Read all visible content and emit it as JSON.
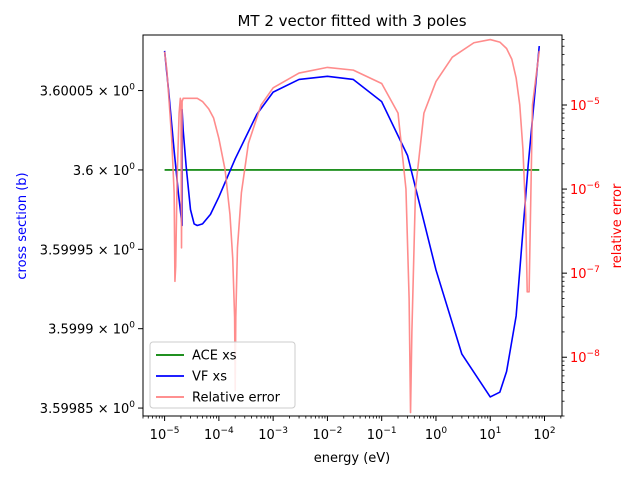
{
  "chart_data": {
    "type": "line",
    "title": "MT 2 vector fitted with 3 poles",
    "xlabel": "energy (eV)",
    "ylabel_left": "cross section (b)",
    "ylabel_right": "relative error",
    "x_scale": "log",
    "y_left_scale": "log",
    "y_right_scale": "log",
    "xlim": [
      4e-06,
      210.0
    ],
    "ylim_left": [
      3.599845,
      3.600085
    ],
    "ylim_right": [
      2e-09,
      6.8e-05
    ],
    "x_ticks": [
      {
        "value": 1e-05,
        "base": "10",
        "exp": "−5"
      },
      {
        "value": 0.0001,
        "base": "10",
        "exp": "−4"
      },
      {
        "value": 0.001,
        "base": "10",
        "exp": "−3"
      },
      {
        "value": 0.01,
        "base": "10",
        "exp": "−2"
      },
      {
        "value": 0.1,
        "base": "10",
        "exp": "−1"
      },
      {
        "value": 1,
        "base": "10",
        "exp": "0"
      },
      {
        "value": 10,
        "base": "10",
        "exp": "1"
      },
      {
        "value": 100,
        "base": "10",
        "exp": "2"
      }
    ],
    "y_left_ticks": [
      {
        "value": 3.60005,
        "mant": "3.60005 × 10",
        "exp": "0"
      },
      {
        "value": 3.6,
        "mant": "3.6 × 10",
        "exp": "0"
      },
      {
        "value": 3.59995,
        "mant": "3.59995 × 10",
        "exp": "0"
      },
      {
        "value": 3.5999,
        "mant": "3.5999 × 10",
        "exp": "0"
      },
      {
        "value": 3.59985,
        "mant": "3.59985 × 10",
        "exp": "0"
      }
    ],
    "y_right_ticks": [
      {
        "value": 1e-05,
        "base": "10",
        "exp": "−5"
      },
      {
        "value": 1e-06,
        "base": "10",
        "exp": "−6"
      },
      {
        "value": 1e-07,
        "base": "10",
        "exp": "−7"
      },
      {
        "value": 1e-08,
        "base": "10",
        "exp": "−8"
      }
    ],
    "legend_position": "lower-left",
    "series": [
      {
        "name": "ACE xs",
        "axis": "left",
        "color": "#008000",
        "x": [
          1e-05,
          80
        ],
        "y": [
          3.6,
          3.6
        ]
      },
      {
        "name": "VF xs",
        "axis": "left",
        "color": "#0000ff",
        "x": [
          1e-05,
          1.2e-05,
          1.5e-05,
          1.8e-05,
          2.1e-05,
          2.1e-05,
          2.2e-05,
          2.5e-05,
          3e-05,
          3.5e-05,
          4e-05,
          5e-05,
          7e-05,
          0.0001,
          0.0002,
          0.0005,
          0.001,
          0.003,
          0.01,
          0.03,
          0.1,
          0.3,
          1,
          3,
          10,
          15,
          20,
          30,
          50,
          80
        ],
        "y": [
          3.600075,
          3.600048,
          3.600012,
          3.599985,
          3.599965,
          3.600038,
          3.600025,
          3.600002,
          3.599975,
          3.599966,
          3.599965,
          3.599966,
          3.599972,
          3.599983,
          3.600007,
          3.600035,
          3.600049,
          3.600057,
          3.600059,
          3.600057,
          3.600043,
          3.600009,
          3.599937,
          3.599884,
          3.599857,
          3.59986,
          3.599873,
          3.599908,
          3.600003,
          3.600078
        ]
      },
      {
        "name": "Relative error",
        "axis": "right",
        "color": "#ff8080",
        "x": [
          1e-05,
          1.1e-05,
          1.2e-05,
          1.35e-05,
          1.5e-05,
          1.55e-05,
          1.6e-05,
          1.7e-05,
          1.85e-05,
          1.95e-05,
          2e-05,
          2.05e-05,
          2.1e-05,
          2.2e-05,
          2.4e-05,
          2.8e-05,
          3.3e-05,
          4e-05,
          5e-05,
          6.5e-05,
          8e-05,
          0.0001,
          0.00013,
          0.00016,
          0.00018,
          0.000195,
          0.0002,
          0.000205,
          0.00022,
          0.00026,
          0.00035,
          0.0006,
          0.001,
          0.003,
          0.01,
          0.03,
          0.1,
          0.2,
          0.28,
          0.32,
          0.34,
          0.36,
          0.42,
          0.6,
          1,
          2,
          5,
          10,
          15,
          20,
          25,
          30,
          35,
          40,
          45,
          48,
          52,
          60,
          80
        ],
        "y": [
          4.3e-05,
          2.6e-05,
          1.2e-05,
          4e-06,
          9e-07,
          8e-08,
          1.2e-07,
          1.3e-06,
          8e-06,
          1.2e-05,
          1.1e-05,
          2e-07,
          1.1e-05,
          1.2e-05,
          1.2e-05,
          1.2e-05,
          1.2e-05,
          1.2e-05,
          1.1e-05,
          9e-06,
          7e-06,
          4e-06,
          1.7e-06,
          5e-07,
          1.5e-07,
          3e-08,
          4e-09,
          3e-08,
          2e-07,
          9e-07,
          3.5e-06,
          1e-05,
          1.6e-05,
          2.4e-05,
          2.8e-05,
          2.6e-05,
          1.8e-05,
          8e-06,
          1e-06,
          5e-08,
          2.2e-09,
          2e-08,
          1e-06,
          8e-06,
          1.9e-05,
          3.7e-05,
          5.5e-05,
          6e-05,
          5.6e-05,
          4.7e-05,
          3.5e-05,
          2.1e-05,
          1e-05,
          3e-06,
          5e-07,
          6e-08,
          6e-08,
          1e-05,
          4.4e-05
        ]
      }
    ]
  }
}
